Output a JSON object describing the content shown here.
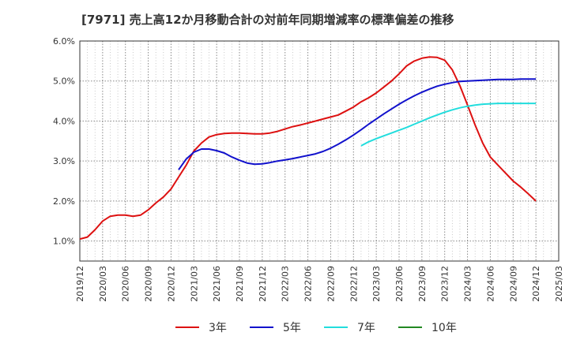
{
  "chart_data": {
    "type": "line",
    "title": "[7971]  売上高12か月移動合計の対前年同期増減率の標準偏差の推移",
    "yticks": [
      "1.0%",
      "2.0%",
      "3.0%",
      "4.0%",
      "5.0%",
      "6.0%"
    ],
    "ylim": [
      0.5,
      6.0
    ],
    "xticks": [
      "2019/12",
      "2020/03",
      "2020/06",
      "2020/09",
      "2020/12",
      "2021/03",
      "2021/06",
      "2021/09",
      "2021/12",
      "2022/03",
      "2022/06",
      "2022/09",
      "2022/12",
      "2023/03",
      "2023/06",
      "2023/09",
      "2023/12",
      "2024/03",
      "2024/06",
      "2024/09",
      "2024/12",
      "2025/03"
    ],
    "grid": true,
    "legend_position": "bottom",
    "series": [
      {
        "name": "3年",
        "color": "#dd1111",
        "x": [
          "2019/12",
          "2020/01",
          "2020/02",
          "2020/03",
          "2020/04",
          "2020/05",
          "2020/06",
          "2020/07",
          "2020/08",
          "2020/09",
          "2020/10",
          "2020/11",
          "2020/12",
          "2021/01",
          "2021/02",
          "2021/03",
          "2021/04",
          "2021/05",
          "2021/06",
          "2021/07",
          "2021/08",
          "2021/09",
          "2021/10",
          "2021/11",
          "2021/12",
          "2022/01",
          "2022/02",
          "2022/03",
          "2022/04",
          "2022/05",
          "2022/06",
          "2022/07",
          "2022/08",
          "2022/09",
          "2022/10",
          "2022/11",
          "2022/12",
          "2023/01",
          "2023/02",
          "2023/03",
          "2023/04",
          "2023/05",
          "2023/06",
          "2023/07",
          "2023/08",
          "2023/09",
          "2023/10",
          "2023/11",
          "2023/12",
          "2024/01",
          "2024/02",
          "2024/03",
          "2024/04",
          "2024/05",
          "2024/06",
          "2024/07",
          "2024/08",
          "2024/09",
          "2024/10",
          "2024/11",
          "2024/12"
        ],
        "values": [
          1.05,
          1.1,
          1.28,
          1.5,
          1.62,
          1.65,
          1.65,
          1.62,
          1.65,
          1.78,
          1.95,
          2.1,
          2.3,
          2.6,
          2.9,
          3.25,
          3.45,
          3.6,
          3.66,
          3.69,
          3.7,
          3.7,
          3.69,
          3.68,
          3.68,
          3.7,
          3.74,
          3.8,
          3.86,
          3.9,
          3.95,
          4.0,
          4.05,
          4.1,
          4.15,
          4.25,
          4.35,
          4.48,
          4.58,
          4.7,
          4.85,
          5.0,
          5.18,
          5.38,
          5.5,
          5.57,
          5.6,
          5.59,
          5.52,
          5.28,
          4.88,
          4.4,
          3.9,
          3.45,
          3.1,
          2.9,
          2.7,
          2.5,
          2.35,
          2.18,
          2.0
        ]
      },
      {
        "name": "5年",
        "color": "#1111cc",
        "x": [
          "2021/01",
          "2021/02",
          "2021/03",
          "2021/04",
          "2021/05",
          "2021/06",
          "2021/07",
          "2021/08",
          "2021/09",
          "2021/10",
          "2021/11",
          "2021/12",
          "2022/01",
          "2022/02",
          "2022/03",
          "2022/04",
          "2022/05",
          "2022/06",
          "2022/07",
          "2022/08",
          "2022/09",
          "2022/10",
          "2022/11",
          "2022/12",
          "2023/01",
          "2023/02",
          "2023/03",
          "2023/04",
          "2023/05",
          "2023/06",
          "2023/07",
          "2023/08",
          "2023/09",
          "2023/10",
          "2023/11",
          "2023/12",
          "2024/01",
          "2024/02",
          "2024/03",
          "2024/04",
          "2024/05",
          "2024/06",
          "2024/07",
          "2024/08",
          "2024/09",
          "2024/10",
          "2024/11",
          "2024/12"
        ],
        "values": [
          2.78,
          3.05,
          3.22,
          3.3,
          3.3,
          3.26,
          3.2,
          3.1,
          3.02,
          2.95,
          2.92,
          2.93,
          2.96,
          3.0,
          3.03,
          3.06,
          3.1,
          3.14,
          3.18,
          3.24,
          3.32,
          3.42,
          3.53,
          3.65,
          3.78,
          3.92,
          4.05,
          4.18,
          4.3,
          4.42,
          4.53,
          4.63,
          4.72,
          4.8,
          4.87,
          4.92,
          4.96,
          4.99,
          5.0,
          5.01,
          5.02,
          5.03,
          5.04,
          5.04,
          5.04,
          5.05,
          5.05,
          5.05
        ]
      },
      {
        "name": "7年",
        "color": "#22dddd",
        "x": [
          "2023/01",
          "2023/02",
          "2023/03",
          "2023/04",
          "2023/05",
          "2023/06",
          "2023/07",
          "2023/08",
          "2023/09",
          "2023/10",
          "2023/11",
          "2023/12",
          "2024/01",
          "2024/02",
          "2024/03",
          "2024/04",
          "2024/05",
          "2024/06",
          "2024/07",
          "2024/08",
          "2024/09",
          "2024/10",
          "2024/11",
          "2024/12"
        ],
        "values": [
          3.38,
          3.48,
          3.56,
          3.63,
          3.7,
          3.77,
          3.84,
          3.92,
          4.0,
          4.08,
          4.15,
          4.22,
          4.28,
          4.33,
          4.37,
          4.4,
          4.42,
          4.43,
          4.44,
          4.44,
          4.44,
          4.44,
          4.44,
          4.44
        ]
      },
      {
        "name": "10年",
        "color": "#228822",
        "x": [],
        "values": []
      }
    ]
  }
}
